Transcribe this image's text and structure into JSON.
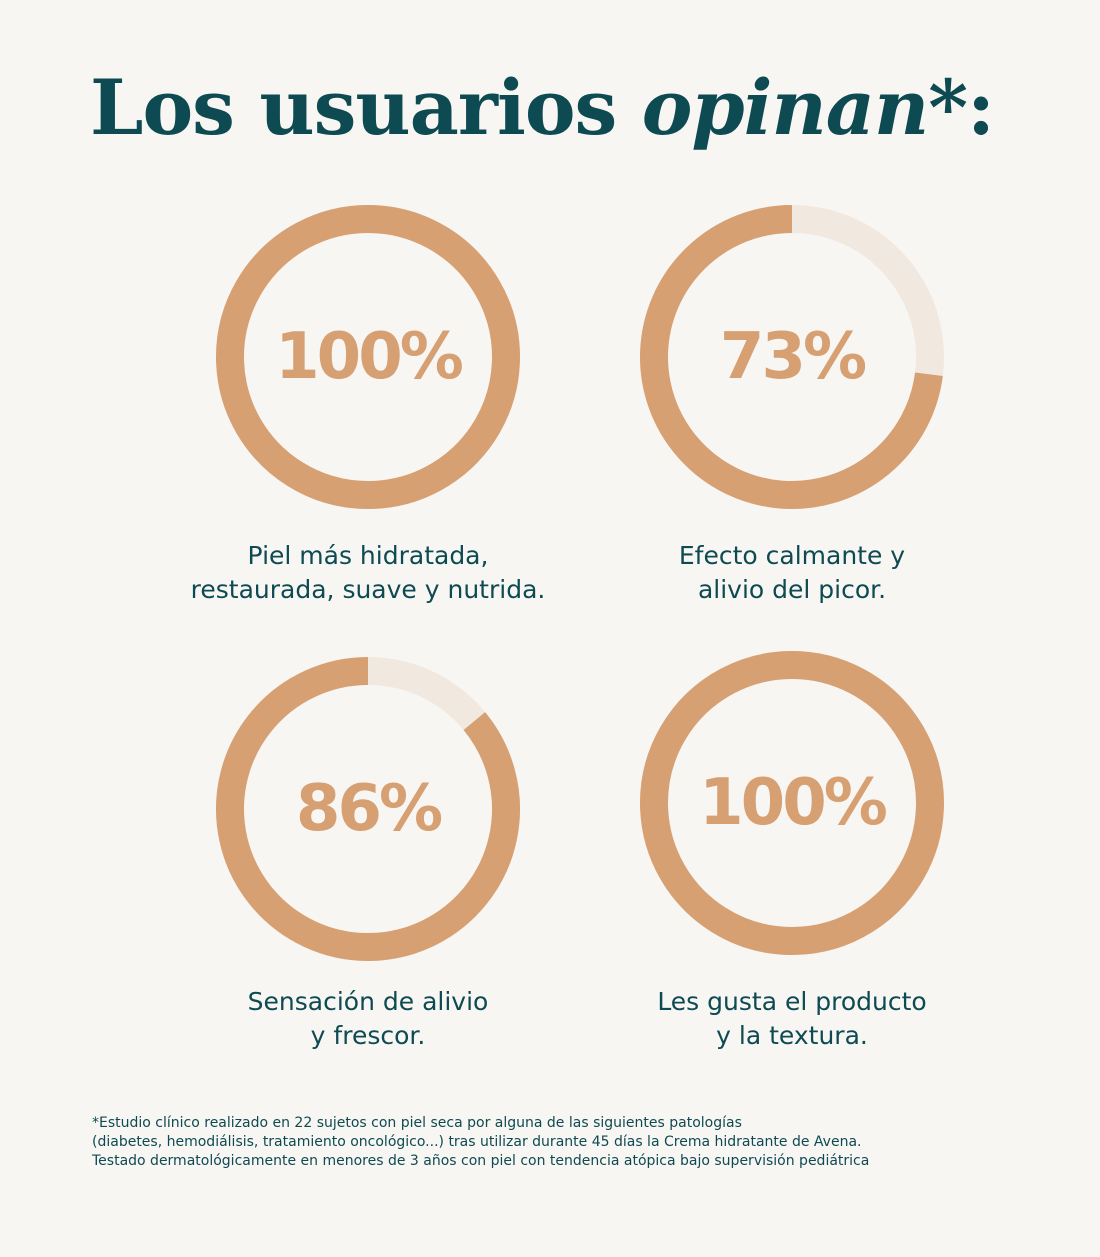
{
  "title": {
    "part1": "Los usuarios ",
    "part2_emphasis": "opinan",
    "part3": "*:"
  },
  "colors": {
    "background": "#f8f6f3",
    "text": "#0e4a52",
    "ring_fill": "#d6a073",
    "ring_track": "#f1e8df",
    "percent_text": "#d6a073"
  },
  "chart_data": [
    {
      "type": "pie",
      "style": "donut",
      "value": 100,
      "label": "100%",
      "caption": [
        "Piel más hidratada,",
        "restaurada, suave y nutrida."
      ]
    },
    {
      "type": "pie",
      "style": "donut",
      "value": 73,
      "label": "73%",
      "caption": [
        "Efecto calmante y",
        "alivio del picor."
      ]
    },
    {
      "type": "pie",
      "style": "donut",
      "value": 86,
      "label": "86%",
      "caption": [
        "Sensación de alivio",
        "y frescor."
      ]
    },
    {
      "type": "pie",
      "style": "donut",
      "value": 100,
      "label": "100%",
      "caption": [
        "Les gusta el producto",
        "y la textura."
      ]
    }
  ],
  "footnote": [
    "*Estudio clínico realizado en 22 sujetos con piel seca por alguna de las siguientes patologías",
    "(diabetes, hemodiálisis, tratamiento oncológico...) tras utilizar durante 45 días la Crema hidratante de Avena.",
    "Testado dermatológicamente en menores de 3 años con piel con tendencia atópica bajo supervisión pediátrica"
  ]
}
